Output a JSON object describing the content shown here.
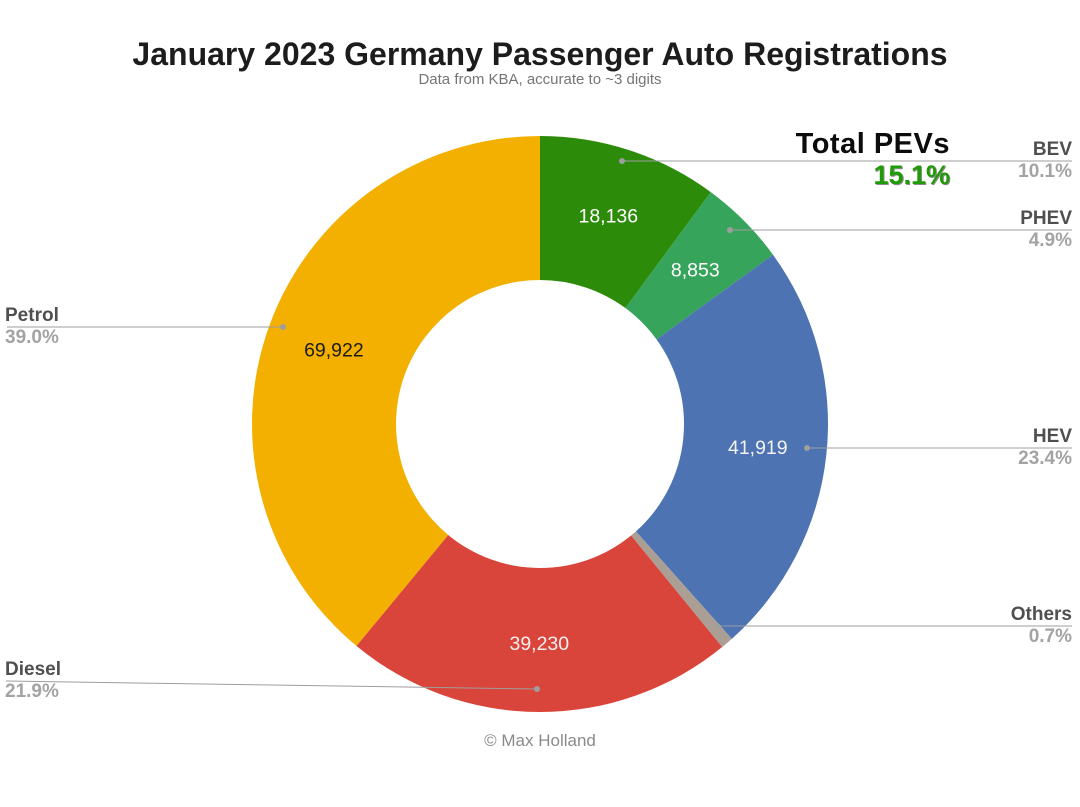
{
  "chart_data": {
    "type": "pie",
    "subtype": "donut",
    "title": "January 2023 Germany Passenger Auto Registrations",
    "subtitle": "Data from KBA, accurate to ~3 digits",
    "footer": "© Max Holland",
    "donut_hole_ratio": 0.5,
    "start_angle_deg": 0,
    "direction": "clockwise",
    "legend_position": "none",
    "grid": false,
    "total_annotation": {
      "label": "Total PEVs",
      "value": "15.1%",
      "color": "#1f9b06"
    },
    "slices": [
      {
        "label": "BEV",
        "value": 18136,
        "value_label": "18,136",
        "pct": 10.1,
        "pct_label": "10.1%",
        "color": "#2d8b0a",
        "value_text_color": "#ffffff"
      },
      {
        "label": "PHEV",
        "value": 8853,
        "value_label": "8,853",
        "pct": 4.9,
        "pct_label": "4.9%",
        "color": "#36a45a",
        "value_text_color": "#ffffff"
      },
      {
        "label": "HEV",
        "value": 41919,
        "value_label": "41,919",
        "pct": 23.4,
        "pct_label": "23.4%",
        "color": "#4d73b3",
        "value_text_color": "#f2f2f2"
      },
      {
        "label": "Others",
        "value": null,
        "value_label": "",
        "pct": 0.7,
        "pct_label": "0.7%",
        "color": "#aa9e95",
        "value_text_color": "#ffffff"
      },
      {
        "label": "Diesel",
        "value": 39230,
        "value_label": "39,230",
        "pct": 21.9,
        "pct_label": "21.9%",
        "color": "#d9453a",
        "value_text_color": "#f7f0ef"
      },
      {
        "label": "Petrol",
        "value": 69922,
        "value_label": "69,922",
        "pct": 39.0,
        "pct_label": "39.0%",
        "color": "#f3b001",
        "value_text_color": "#1b1b1b"
      }
    ]
  }
}
